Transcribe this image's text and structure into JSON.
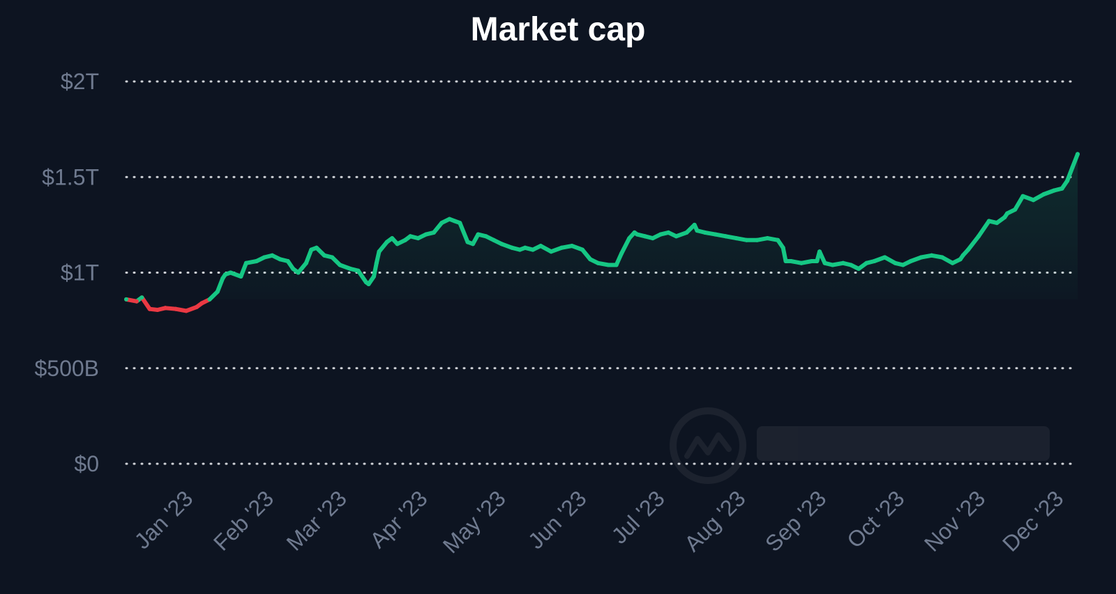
{
  "chart_data": {
    "type": "line",
    "title": "Market cap",
    "xlabel": "",
    "ylabel": "",
    "x_range": [
      "2022-12-07",
      "2023-12-07"
    ],
    "ylim": [
      0,
      2000000000000
    ],
    "grid": true,
    "y_ticks": [
      {
        "value": 0,
        "label": "$0"
      },
      {
        "value": 500000000000,
        "label": "$500B"
      },
      {
        "value": 1000000000000,
        "label": "$1T"
      },
      {
        "value": 1500000000000,
        "label": "$1.5T"
      },
      {
        "value": 2000000000000,
        "label": "$2T"
      }
    ],
    "x_ticks": [
      {
        "date": "2023-01-01",
        "label": "Jan '23"
      },
      {
        "date": "2023-02-01",
        "label": "Feb '23"
      },
      {
        "date": "2023-03-01",
        "label": "Mar '23"
      },
      {
        "date": "2023-04-01",
        "label": "Apr '23"
      },
      {
        "date": "2023-05-01",
        "label": "May '23"
      },
      {
        "date": "2023-06-01",
        "label": "Jun '23"
      },
      {
        "date": "2023-07-01",
        "label": "Jul '23"
      },
      {
        "date": "2023-08-01",
        "label": "Aug '23"
      },
      {
        "date": "2023-09-01",
        "label": "Sep '23"
      },
      {
        "date": "2023-10-01",
        "label": "Oct '23"
      },
      {
        "date": "2023-11-01",
        "label": "Nov '23"
      },
      {
        "date": "2023-12-01",
        "label": "Dec '23"
      }
    ],
    "baseline_value": 860000000000,
    "colors": {
      "up": "#16c784",
      "down": "#ea3943",
      "background": "#0d1421",
      "title": "#ffffff",
      "tick_label": "#6f7a8f",
      "grid": "#e6e8ec"
    },
    "series": [
      {
        "x": [
          "2022-12-07",
          "2022-12-11",
          "2022-12-13",
          "2022-12-16",
          "2022-12-19",
          "2022-12-22",
          "2022-12-26",
          "2022-12-30",
          "2023-01-03",
          "2023-01-05",
          "2023-01-08",
          "2023-01-11",
          "2023-01-13",
          "2023-01-14",
          "2023-01-16",
          "2023-01-20",
          "2023-01-22",
          "2023-01-26",
          "2023-01-29",
          "2023-02-01",
          "2023-02-04",
          "2023-02-07",
          "2023-02-09",
          "2023-02-11",
          "2023-02-14",
          "2023-02-16",
          "2023-02-18",
          "2023-02-21",
          "2023-02-24",
          "2023-02-27",
          "2023-03-03",
          "2023-03-06",
          "2023-03-09",
          "2023-03-10",
          "2023-03-12",
          "2023-03-13",
          "2023-03-14",
          "2023-03-17",
          "2023-03-19",
          "2023-03-21",
          "2023-03-24",
          "2023-03-26",
          "2023-03-29",
          "2023-04-01",
          "2023-04-04",
          "2023-04-07",
          "2023-04-10",
          "2023-04-12",
          "2023-04-14",
          "2023-04-17",
          "2023-04-19",
          "2023-04-21",
          "2023-04-24",
          "2023-04-27",
          "2023-04-30",
          "2023-05-04",
          "2023-05-07",
          "2023-05-09",
          "2023-05-12",
          "2023-05-15",
          "2023-05-19",
          "2023-05-23",
          "2023-05-27",
          "2023-05-31",
          "2023-06-03",
          "2023-06-06",
          "2023-06-10",
          "2023-06-13",
          "2023-06-15",
          "2023-06-18",
          "2023-06-20",
          "2023-06-21",
          "2023-06-24",
          "2023-06-27",
          "2023-06-30",
          "2023-07-03",
          "2023-07-06",
          "2023-07-10",
          "2023-07-13",
          "2023-07-14",
          "2023-07-17",
          "2023-07-21",
          "2023-07-25",
          "2023-07-29",
          "2023-08-02",
          "2023-08-06",
          "2023-08-10",
          "2023-08-14",
          "2023-08-16",
          "2023-08-17",
          "2023-08-19",
          "2023-08-23",
          "2023-08-27",
          "2023-08-29",
          "2023-08-30",
          "2023-09-01",
          "2023-09-04",
          "2023-09-08",
          "2023-09-11",
          "2023-09-14",
          "2023-09-17",
          "2023-09-20",
          "2023-09-24",
          "2023-09-28",
          "2023-10-01",
          "2023-10-04",
          "2023-10-08",
          "2023-10-12",
          "2023-10-16",
          "2023-10-20",
          "2023-10-23",
          "2023-10-24",
          "2023-10-26",
          "2023-10-30",
          "2023-11-03",
          "2023-11-06",
          "2023-11-09",
          "2023-11-10",
          "2023-11-13",
          "2023-11-16",
          "2023-11-20",
          "2023-11-24",
          "2023-11-28",
          "2023-12-01",
          "2023-12-03",
          "2023-12-05",
          "2023-12-07"
        ],
        "y": [
          860000000000,
          850000000000,
          870000000000,
          810000000000,
          805000000000,
          815000000000,
          810000000000,
          800000000000,
          820000000000,
          840000000000,
          860000000000,
          900000000000,
          970000000000,
          990000000000,
          1000000000000,
          980000000000,
          1050000000000,
          1060000000000,
          1080000000000,
          1090000000000,
          1070000000000,
          1060000000000,
          1020000000000,
          1000000000000,
          1050000000000,
          1120000000000,
          1130000000000,
          1090000000000,
          1080000000000,
          1040000000000,
          1020000000000,
          1010000000000,
          950000000000,
          940000000000,
          980000000000,
          1050000000000,
          1110000000000,
          1160000000000,
          1180000000000,
          1150000000000,
          1170000000000,
          1190000000000,
          1180000000000,
          1200000000000,
          1210000000000,
          1260000000000,
          1280000000000,
          1270000000000,
          1260000000000,
          1160000000000,
          1150000000000,
          1200000000000,
          1190000000000,
          1170000000000,
          1150000000000,
          1130000000000,
          1120000000000,
          1130000000000,
          1120000000000,
          1140000000000,
          1110000000000,
          1130000000000,
          1140000000000,
          1120000000000,
          1070000000000,
          1050000000000,
          1040000000000,
          1040000000000,
          1100000000000,
          1180000000000,
          1210000000000,
          1200000000000,
          1190000000000,
          1180000000000,
          1200000000000,
          1210000000000,
          1190000000000,
          1210000000000,
          1250000000000,
          1220000000000,
          1210000000000,
          1200000000000,
          1190000000000,
          1180000000000,
          1170000000000,
          1170000000000,
          1180000000000,
          1170000000000,
          1130000000000,
          1060000000000,
          1060000000000,
          1050000000000,
          1060000000000,
          1060000000000,
          1110000000000,
          1050000000000,
          1040000000000,
          1050000000000,
          1040000000000,
          1020000000000,
          1050000000000,
          1060000000000,
          1080000000000,
          1050000000000,
          1040000000000,
          1060000000000,
          1080000000000,
          1090000000000,
          1080000000000,
          1050000000000,
          1070000000000,
          1090000000000,
          1120000000000,
          1190000000000,
          1270000000000,
          1260000000000,
          1290000000000,
          1310000000000,
          1330000000000,
          1400000000000,
          1380000000000,
          1410000000000,
          1430000000000,
          1440000000000,
          1480000000000,
          1550000000000,
          1620000000000
        ]
      }
    ]
  }
}
